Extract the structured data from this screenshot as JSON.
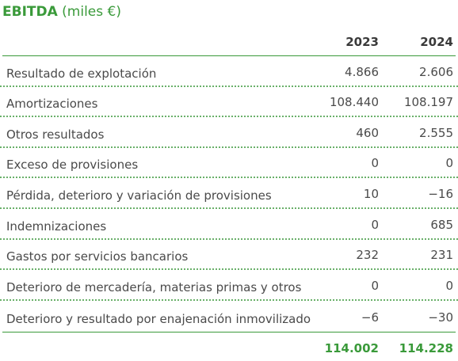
{
  "title": {
    "main": "EBITDA",
    "unit": "(miles €)"
  },
  "columns": [
    "2023",
    "2024"
  ],
  "rows": [
    {
      "label": "Resultado de explotación",
      "v2023": "4.866",
      "v2024": "2.606"
    },
    {
      "label": "Amortizaciones",
      "v2023": "108.440",
      "v2024": "108.197"
    },
    {
      "label": "Otros resultados",
      "v2023": "460",
      "v2024": "2.555"
    },
    {
      "label": "Exceso de provisiones",
      "v2023": "0",
      "v2024": "0"
    },
    {
      "label": "Pérdida, deterioro y variación de provisiones",
      "v2023": "10",
      "v2024": "−16"
    },
    {
      "label": "Indemnizaciones",
      "v2023": "0",
      "v2024": "685"
    },
    {
      "label": "Gastos por servicios bancarios",
      "v2023": "232",
      "v2024": "231"
    },
    {
      "label": "Deterioro de mercadería, materias primas y otros",
      "v2023": "0",
      "v2024": "0"
    },
    {
      "label": "Deterioro y resultado por enajenación inmovilizado",
      "v2023": "−6",
      "v2024": "−30"
    }
  ],
  "total": {
    "v2023": "114.002",
    "v2024": "114.228"
  },
  "colors": {
    "accent": "#3a9a3a",
    "text": "#4a4a4a"
  }
}
